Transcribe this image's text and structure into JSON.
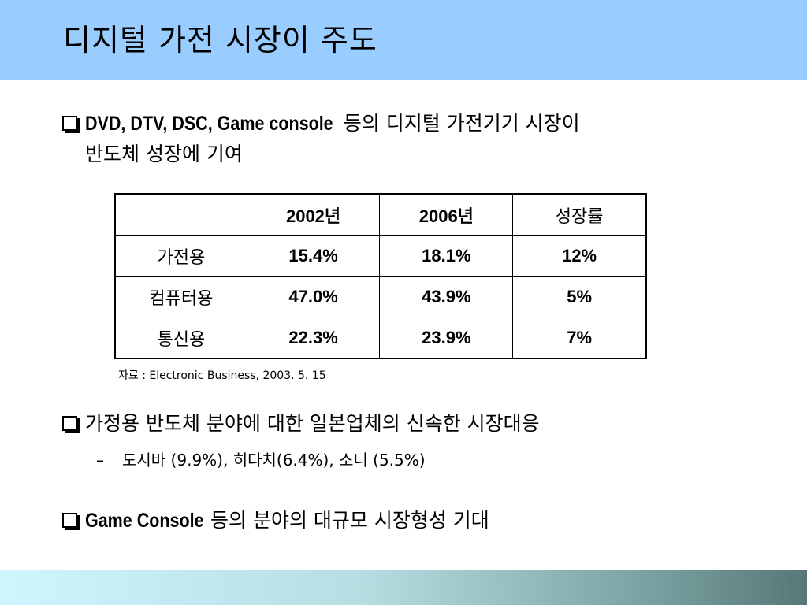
{
  "slide": {
    "title": "디지털 가전 시장이 주도"
  },
  "bullets": [
    {
      "lead": "DVD, DTV, DSC, Game console",
      "text": " 등의 디지털 가전기기 시장이",
      "continuation": "반도체 성장에 기여"
    },
    {
      "text": "가정용 반도체 분야에 대한 일본업체의 신속한 시장대응",
      "sub": [
        {
          "dash": "–",
          "text": "도시바 (9.9%), 히다치(6.4%), 소니 (5.5%)"
        }
      ]
    },
    {
      "lead": "Game Console",
      "text": " 등의 분야의 대규모 시장형성 기대"
    }
  ],
  "table": {
    "headers": [
      "",
      "2002년",
      "2006년",
      "성장률"
    ],
    "rows": [
      [
        "가전용",
        "15.4%",
        "18.1%",
        "12%"
      ],
      [
        "컴퓨터용",
        "47.0%",
        "43.9%",
        "5%"
      ],
      [
        "통신용",
        "22.3%",
        "23.9%",
        "7%"
      ]
    ]
  },
  "source": "자료 : Electronic Business, 2003. 5. 15"
}
